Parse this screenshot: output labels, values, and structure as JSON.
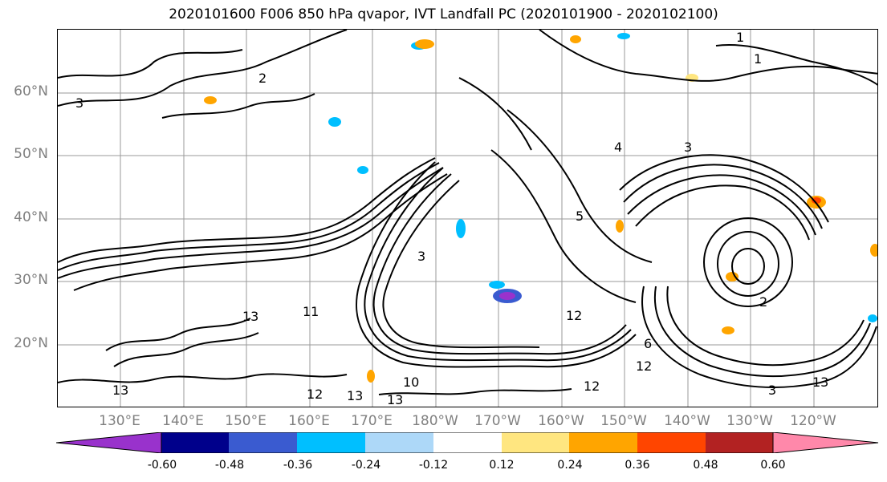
{
  "title": "2020101600 F006 850 hPa qvapor, IVT Landfall PC (2020101900 - 2020102100)",
  "lat_labels": [
    "60°N",
    "50°N",
    "40°N",
    "30°N",
    "20°N"
  ],
  "lon_labels": [
    "130°E",
    "140°E",
    "150°E",
    "160°E",
    "170°E",
    "180°W",
    "170°W",
    "160°W",
    "150°W",
    "140°W",
    "130°W",
    "120°W"
  ],
  "contour_labels": [
    "3",
    "2",
    "1",
    "1",
    "4",
    "3",
    "5",
    "3",
    "2",
    "11",
    "13",
    "12",
    "12",
    "13",
    "13",
    "10",
    "13",
    "6",
    "12",
    "13",
    "3",
    "12"
  ],
  "colorbar": {
    "tick_labels": [
      "-0.60",
      "-0.48",
      "-0.36",
      "-0.24",
      "-0.12",
      "0.12",
      "0.24",
      "0.36",
      "0.48",
      "0.60"
    ],
    "colors": [
      "#9932cc",
      "#00008b",
      "#3a5bd0",
      "#00bfff",
      "#add8f8",
      "#ffffff",
      "#ffe680",
      "#ffa500",
      "#ff4500",
      "#b22222",
      "#ff88aa"
    ]
  }
}
